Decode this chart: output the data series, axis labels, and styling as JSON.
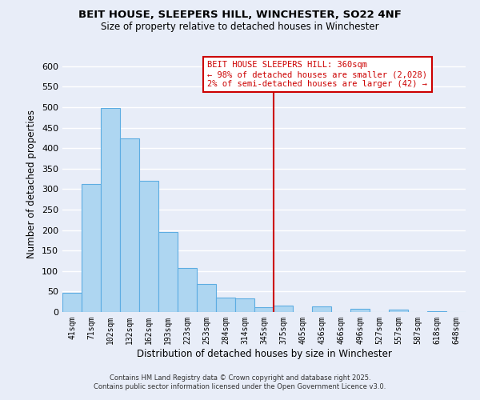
{
  "title": "BEIT HOUSE, SLEEPERS HILL, WINCHESTER, SO22 4NF",
  "subtitle": "Size of property relative to detached houses in Winchester",
  "xlabel": "Distribution of detached houses by size in Winchester",
  "ylabel": "Number of detached properties",
  "categories": [
    "41sqm",
    "71sqm",
    "102sqm",
    "132sqm",
    "162sqm",
    "193sqm",
    "223sqm",
    "253sqm",
    "284sqm",
    "314sqm",
    "345sqm",
    "375sqm",
    "405sqm",
    "436sqm",
    "466sqm",
    "496sqm",
    "527sqm",
    "557sqm",
    "587sqm",
    "618sqm",
    "648sqm"
  ],
  "values": [
    46,
    313,
    498,
    424,
    320,
    195,
    107,
    69,
    36,
    33,
    12,
    15,
    0,
    14,
    0,
    8,
    0,
    5,
    0,
    1,
    0
  ],
  "bar_color": "#aed6f1",
  "bar_edge_color": "#5dade2",
  "ylim": [
    0,
    625
  ],
  "yticks": [
    0,
    50,
    100,
    150,
    200,
    250,
    300,
    350,
    400,
    450,
    500,
    550,
    600
  ],
  "vline_x": 10.5,
  "vline_color": "#cc0000",
  "annotation_title": "BEIT HOUSE SLEEPERS HILL: 360sqm",
  "annotation_line1": "← 98% of detached houses are smaller (2,028)",
  "annotation_line2": "2% of semi-detached houses are larger (42) →",
  "annotation_box_color": "#cc0000",
  "annotation_text_color": "#cc0000",
  "background_color": "#e8edf8",
  "grid_color": "#ffffff",
  "footer1": "Contains HM Land Registry data © Crown copyright and database right 2025.",
  "footer2": "Contains public sector information licensed under the Open Government Licence v3.0."
}
